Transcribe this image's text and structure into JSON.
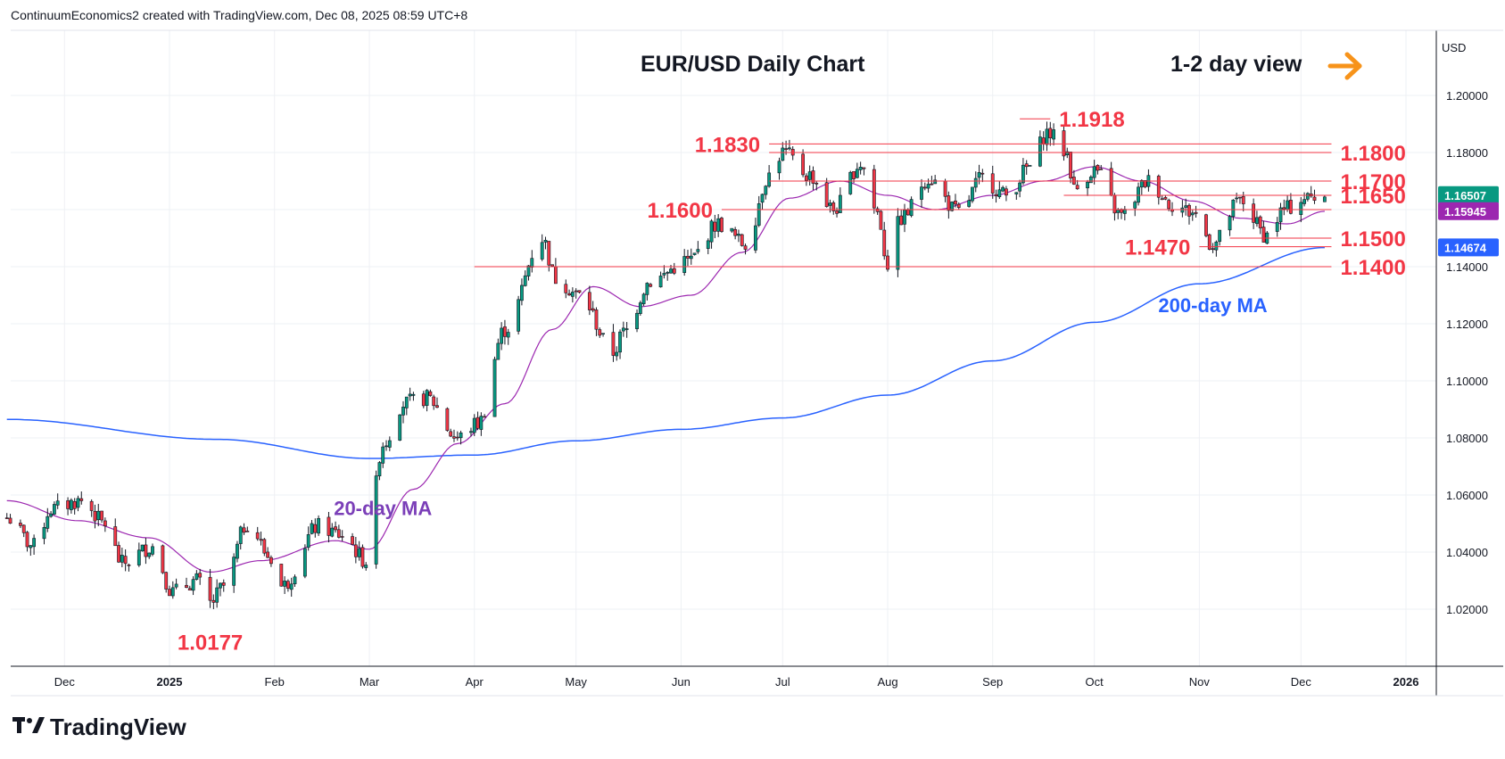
{
  "header": {
    "attribution": "ContinuumEconomics2 created with TradingView.com, Dec 08, 2025 08:59 UTC+8"
  },
  "chart_title": "EUR/USD Daily Chart",
  "view_label": "1-2 day view",
  "currency": "USD",
  "footer": {
    "brand": "TradingView"
  },
  "colors": {
    "up": "#089981",
    "down": "#f23645",
    "ma20": "#9c27b0",
    "ma200": "#2962ff",
    "level": "#f23645",
    "arrow": "#f7931a",
    "grid": "#eef0f4"
  },
  "icons": {
    "view_arrow": "right-arrow-icon",
    "logo": "tradingview-logo-icon"
  },
  "chart_data": {
    "type": "candlestick",
    "title": "EUR/USD Daily Chart",
    "ylim": [
      1.0,
      1.22
    ],
    "grid": true,
    "y_ticks": [
      "1.20000",
      "1.18000",
      "1.16000",
      "1.14000",
      "1.12000",
      "1.10000",
      "1.08000",
      "1.06000",
      "1.04000",
      "1.02000"
    ],
    "y_tick_values": [
      1.2,
      1.18,
      1.16,
      1.14,
      1.12,
      1.1,
      1.08,
      1.06,
      1.04,
      1.02
    ],
    "x_ticks": [
      {
        "label": "Dec",
        "date": "2024-12-01"
      },
      {
        "label": "2025",
        "date": "2025-01-01"
      },
      {
        "label": "Feb",
        "date": "2025-02-01"
      },
      {
        "label": "Mar",
        "date": "2025-03-01"
      },
      {
        "label": "Apr",
        "date": "2025-04-01"
      },
      {
        "label": "May",
        "date": "2025-05-01"
      },
      {
        "label": "Jun",
        "date": "2025-06-01"
      },
      {
        "label": "Jul",
        "date": "2025-07-01"
      },
      {
        "label": "Aug",
        "date": "2025-08-01"
      },
      {
        "label": "Sep",
        "date": "2025-09-01"
      },
      {
        "label": "Oct",
        "date": "2025-10-01"
      },
      {
        "label": "Nov",
        "date": "2025-11-01"
      },
      {
        "label": "Dec",
        "date": "2025-12-01"
      },
      {
        "label": "2026",
        "date": "2026-01-01"
      }
    ],
    "price_series": [
      [
        "2024-11-14",
        1.052
      ],
      [
        "2024-11-22",
        1.042
      ],
      [
        "2024-11-27",
        1.055
      ],
      [
        "2024-12-06",
        1.058
      ],
      [
        "2024-12-13",
        1.05
      ],
      [
        "2024-12-18",
        1.036
      ],
      [
        "2024-12-27",
        1.042
      ],
      [
        "2025-01-02",
        1.026
      ],
      [
        "2025-01-09",
        1.03
      ],
      [
        "2025-01-13",
        1.022
      ],
      [
        "2025-01-17",
        1.028
      ],
      [
        "2025-01-24",
        1.05
      ],
      [
        "2025-01-31",
        1.038
      ],
      [
        "2025-02-03",
        1.028
      ],
      [
        "2025-02-14",
        1.049
      ],
      [
        "2025-02-21",
        1.046
      ],
      [
        "2025-02-28",
        1.037
      ],
      [
        "2025-03-05",
        1.078
      ],
      [
        "2025-03-11",
        1.092
      ],
      [
        "2025-03-18",
        1.094
      ],
      [
        "2025-03-27",
        1.08
      ],
      [
        "2025-04-02",
        1.085
      ],
      [
        "2025-04-10",
        1.118
      ],
      [
        "2025-04-21",
        1.15
      ],
      [
        "2025-04-25",
        1.136
      ],
      [
        "2025-05-02",
        1.13
      ],
      [
        "2025-05-12",
        1.11
      ],
      [
        "2025-05-15",
        1.117
      ],
      [
        "2025-05-23",
        1.135
      ],
      [
        "2025-06-03",
        1.142
      ],
      [
        "2025-06-12",
        1.155
      ],
      [
        "2025-06-20",
        1.148
      ],
      [
        "2025-06-27",
        1.172
      ],
      [
        "2025-07-01",
        1.18
      ],
      [
        "2025-07-09",
        1.172
      ],
      [
        "2025-07-16",
        1.16
      ],
      [
        "2025-07-24",
        1.176
      ],
      [
        "2025-07-29",
        1.159
      ],
      [
        "2025-08-01",
        1.141
      ],
      [
        "2025-08-05",
        1.157
      ],
      [
        "2025-08-13",
        1.171
      ],
      [
        "2025-08-22",
        1.159
      ],
      [
        "2025-08-29",
        1.171
      ],
      [
        "2025-09-05",
        1.165
      ],
      [
        "2025-09-12",
        1.175
      ],
      [
        "2025-09-17",
        1.187
      ],
      [
        "2025-09-23",
        1.18
      ],
      [
        "2025-09-25",
        1.167
      ],
      [
        "2025-10-01",
        1.174
      ],
      [
        "2025-10-09",
        1.158
      ],
      [
        "2025-10-17",
        1.17
      ],
      [
        "2025-10-24",
        1.162
      ],
      [
        "2025-10-30",
        1.159
      ],
      [
        "2025-11-05",
        1.148
      ],
      [
        "2025-11-13",
        1.163
      ],
      [
        "2025-11-21",
        1.151
      ],
      [
        "2025-11-26",
        1.16
      ],
      [
        "2025-12-02",
        1.164
      ],
      [
        "2025-12-08",
        1.1651
      ]
    ],
    "ma20": [
      [
        "2024-11-14",
        1.058
      ],
      [
        "2024-12-05",
        1.051
      ],
      [
        "2024-12-26",
        1.045
      ],
      [
        "2025-01-13",
        1.033
      ],
      [
        "2025-01-28",
        1.037
      ],
      [
        "2025-02-19",
        1.044
      ],
      [
        "2025-03-01",
        1.041
      ],
      [
        "2025-03-14",
        1.062
      ],
      [
        "2025-03-27",
        1.078
      ],
      [
        "2025-04-10",
        1.092
      ],
      [
        "2025-04-24",
        1.118
      ],
      [
        "2025-05-06",
        1.133
      ],
      [
        "2025-05-20",
        1.126
      ],
      [
        "2025-06-04",
        1.13
      ],
      [
        "2025-06-19",
        1.145
      ],
      [
        "2025-07-03",
        1.164
      ],
      [
        "2025-07-18",
        1.17
      ],
      [
        "2025-08-01",
        1.165
      ],
      [
        "2025-08-15",
        1.16
      ],
      [
        "2025-09-01",
        1.165
      ],
      [
        "2025-09-16",
        1.17
      ],
      [
        "2025-10-01",
        1.175
      ],
      [
        "2025-10-15",
        1.17
      ],
      [
        "2025-10-30",
        1.163
      ],
      [
        "2025-11-13",
        1.157
      ],
      [
        "2025-11-27",
        1.155
      ],
      [
        "2025-12-08",
        1.1594
      ]
    ],
    "ma200": [
      [
        "2024-11-14",
        1.0865
      ],
      [
        "2025-01-15",
        1.0795
      ],
      [
        "2025-03-01",
        1.0728
      ],
      [
        "2025-04-01",
        1.074
      ],
      [
        "2025-05-01",
        1.079
      ],
      [
        "2025-06-01",
        1.083
      ],
      [
        "2025-07-01",
        1.087
      ],
      [
        "2025-08-01",
        1.095
      ],
      [
        "2025-09-01",
        1.107
      ],
      [
        "2025-10-01",
        1.1205
      ],
      [
        "2025-11-01",
        1.134
      ],
      [
        "2025-12-08",
        1.1467
      ]
    ],
    "levels": [
      {
        "value": 1.1918,
        "label": "1.1918",
        "label_side": "right",
        "from": "2025-09-09",
        "to": "2025-09-18"
      },
      {
        "value": 1.183,
        "label": "1.1830",
        "label_side": "left",
        "from": "2025-06-27",
        "to": "2025-12-10"
      },
      {
        "value": 1.18,
        "label": "1.1800",
        "label_side": "right",
        "from": "2025-06-27",
        "to": "2025-12-10"
      },
      {
        "value": 1.17,
        "label": "1.1700",
        "label_side": "right",
        "from": "2025-06-27",
        "to": "2025-12-10"
      },
      {
        "value": 1.165,
        "label": "1.1650",
        "label_side": "right",
        "from": "2025-09-22",
        "to": "2025-12-10"
      },
      {
        "value": 1.16,
        "label": "1.1600",
        "label_side": "left",
        "from": "2025-06-13",
        "to": "2025-12-10"
      },
      {
        "value": 1.15,
        "label": "1.1500",
        "label_side": "right",
        "from": "2025-11-10",
        "to": "2025-12-10"
      },
      {
        "value": 1.147,
        "label": "1.1470",
        "label_side": "left",
        "from": "2025-11-01",
        "to": "2025-12-10"
      },
      {
        "value": 1.14,
        "label": "1.1400",
        "label_side": "right",
        "from": "2025-04-01",
        "to": "2025-12-10"
      }
    ],
    "annotations": [
      {
        "text": "1.0177",
        "date": "2025-01-13",
        "value": 1.0177
      },
      {
        "text": "20-day MA",
        "date": "2025-03-05",
        "value": 1.0555
      },
      {
        "text": "200-day MA",
        "date": "2025-11-05",
        "value": 1.1265
      }
    ],
    "price_badges": [
      {
        "text": "1.16507",
        "value": 1.16507,
        "color": "#089981"
      },
      {
        "text": "1.15945",
        "value": 1.15945,
        "color": "#9c27b0"
      },
      {
        "text": "1.14674",
        "value": 1.14674,
        "color": "#2962ff"
      }
    ]
  }
}
